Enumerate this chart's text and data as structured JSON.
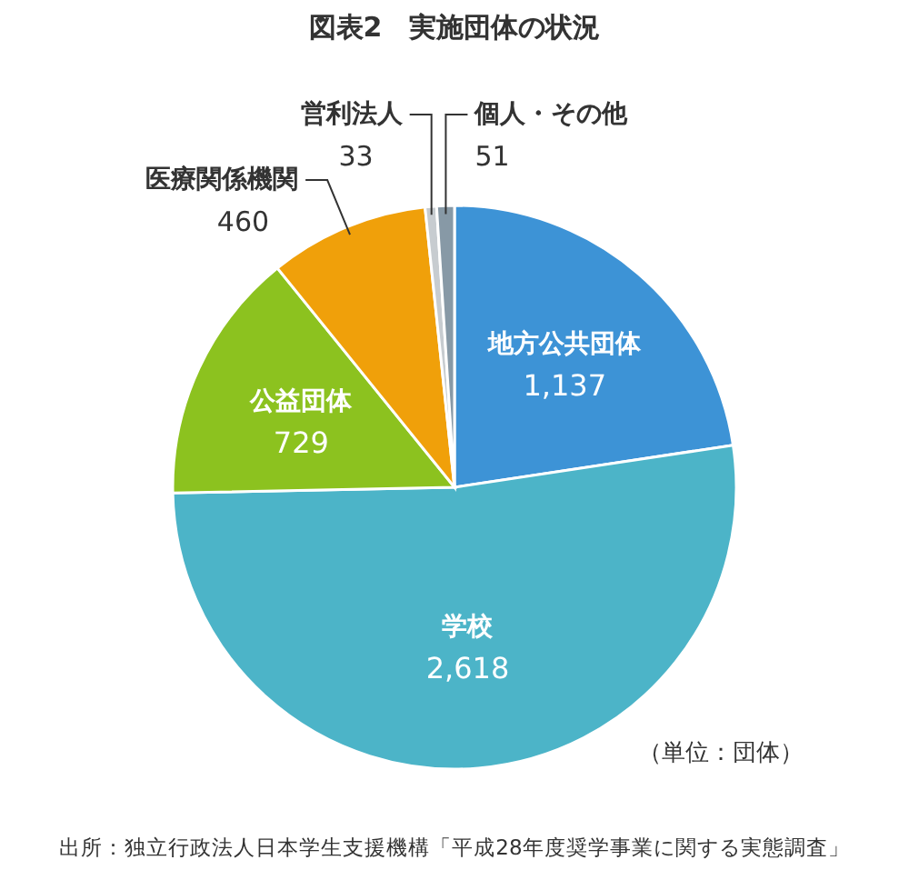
{
  "chart_data": {
    "type": "pie",
    "title": "図表2　実施団体の状況",
    "categories": [
      "地方公共団体",
      "学校",
      "公益団体",
      "医療関係機関",
      "営利法人",
      "個人・その他"
    ],
    "values": [
      1137,
      2618,
      729,
      460,
      33,
      51
    ],
    "colors": [
      "#3d93d6",
      "#4cb4c8",
      "#8cc21f",
      "#f0a00a",
      "#c7ccd0",
      "#8799a6"
    ],
    "value_labels": [
      "1,137",
      "2,618",
      "729",
      "460",
      "33",
      "51"
    ],
    "annotations": [
      "（単位：団体）",
      "出所：独立行政法人日本学生支援機構「平成28年度奨学事業に関する実態調査」"
    ]
  }
}
